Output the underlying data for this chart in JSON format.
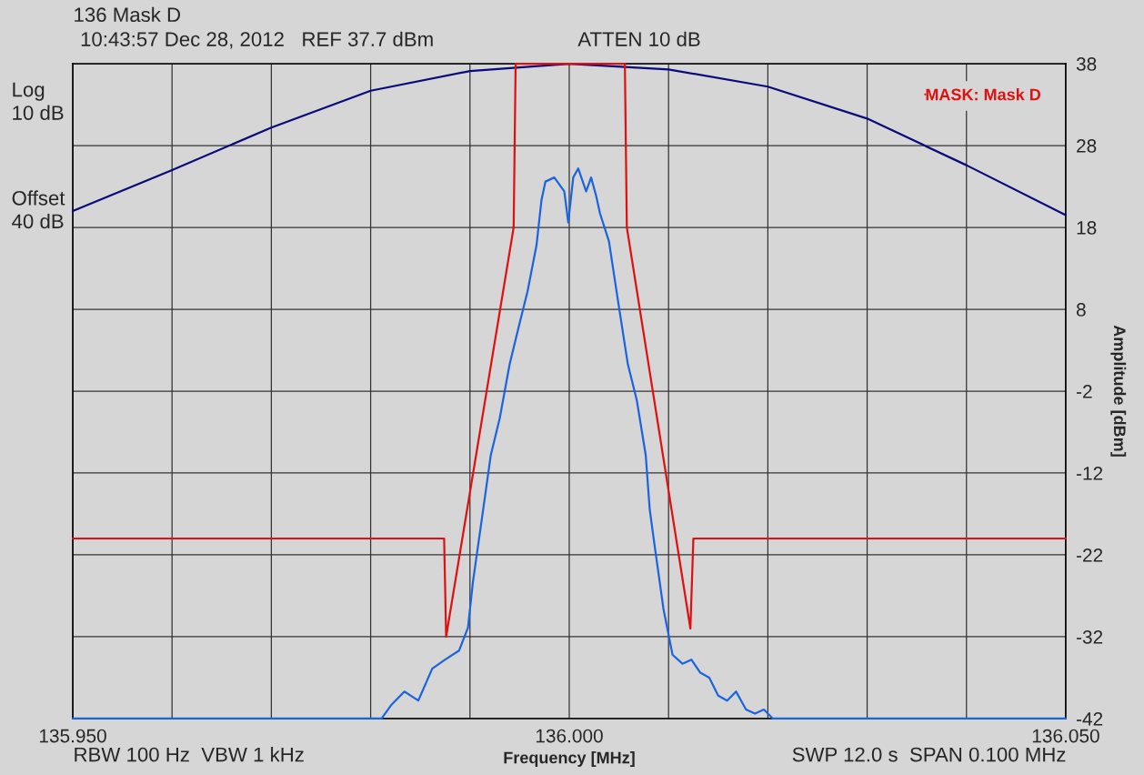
{
  "chart_data": {
    "type": "line",
    "title": "136 Mask D",
    "xlabel": "Frequency [MHz]",
    "ylabel": "Amplitude [dBm]",
    "annotations": [
      "10:43:57 Dec 28, 2012   REF 37.7 dBm",
      "ATTEN 10 dB",
      "Log\n10 dB",
      "Offset\n40 dB",
      "RBW 100 Hz  VBW 1 kHz",
      "SWP 12.0 s  SPAN 0.100 MHz"
    ],
    "xlim": [
      135.95,
      136.05
    ],
    "ylim": [
      -42,
      38
    ],
    "xticks": [
      {
        "value": 135.95,
        "label": "135.950"
      },
      {
        "value": 135.96,
        "label": null
      },
      {
        "value": 135.97,
        "label": null
      },
      {
        "value": 135.98,
        "label": null
      },
      {
        "value": 135.99,
        "label": null
      },
      {
        "value": 136.0,
        "label": "136.000"
      },
      {
        "value": 136.01,
        "label": null
      },
      {
        "value": 136.02,
        "label": null
      },
      {
        "value": 136.03,
        "label": null
      },
      {
        "value": 136.04,
        "label": null
      },
      {
        "value": 136.05,
        "label": "136.050"
      }
    ],
    "yticks": [
      -42,
      -32,
      -22,
      -12,
      -2,
      8,
      18,
      28,
      38
    ],
    "grid": true,
    "legend": "top right",
    "series": [
      {
        "color": "#0a0a7a",
        "x": [
          135.95,
          135.96,
          135.97,
          135.98,
          135.99,
          136.0,
          136.01,
          136.02,
          136.03,
          136.04,
          136.05
        ],
        "values": [
          20,
          25,
          30.2,
          34.7,
          37.1,
          38,
          37.3,
          35.2,
          31.3,
          25.6,
          19.5
        ]
      },
      {
        "name": "MASK: Mask D",
        "color": "#e01010",
        "x": [
          135.95,
          135.9874,
          135.9876,
          135.9944,
          135.9946,
          136.0056,
          136.0058,
          136.0122,
          136.0125,
          136.05
        ],
        "values": [
          -20,
          -20,
          -32,
          18,
          38,
          38,
          18,
          -31,
          -20,
          -20
        ]
      },
      {
        "color": "#1a64e0",
        "x": [
          135.95,
          135.9811,
          135.9821,
          135.9834,
          135.9848,
          135.9862,
          135.9875,
          135.9889,
          135.9898,
          135.9903,
          135.9912,
          135.9921,
          135.993,
          135.994,
          135.9949,
          135.9958,
          135.9967,
          135.9972,
          135.9976,
          135.9985,
          135.9995,
          135.9999,
          136.0004,
          136.0009,
          136.0017,
          136.0022,
          136.0027,
          136.0031,
          136.004,
          136.0049,
          136.0059,
          136.0068,
          136.0077,
          136.0081,
          136.0086,
          136.0095,
          136.0104,
          136.0114,
          136.0123,
          136.0132,
          136.0141,
          136.015,
          136.0159,
          136.0168,
          136.0178,
          136.0187,
          136.0196,
          136.0205,
          136.05
        ],
        "values": [
          -42,
          -42,
          -40.3,
          -38.7,
          -39.8,
          -35.9,
          -34.8,
          -33.7,
          -30.9,
          -25.3,
          -17.6,
          -9.8,
          -5.3,
          1.3,
          5.8,
          10.2,
          15.8,
          21.3,
          23.6,
          24.1,
          22.4,
          18.6,
          24.1,
          25.2,
          22.4,
          24.1,
          21.9,
          19.7,
          16.3,
          9.1,
          1.3,
          -3.1,
          -9.8,
          -16.4,
          -20.9,
          -28.7,
          -34.2,
          -35.3,
          -34.8,
          -36.4,
          -37,
          -39.2,
          -39.8,
          -38.7,
          -40.9,
          -41.4,
          -40.9,
          -42,
          -42
        ]
      }
    ]
  }
}
